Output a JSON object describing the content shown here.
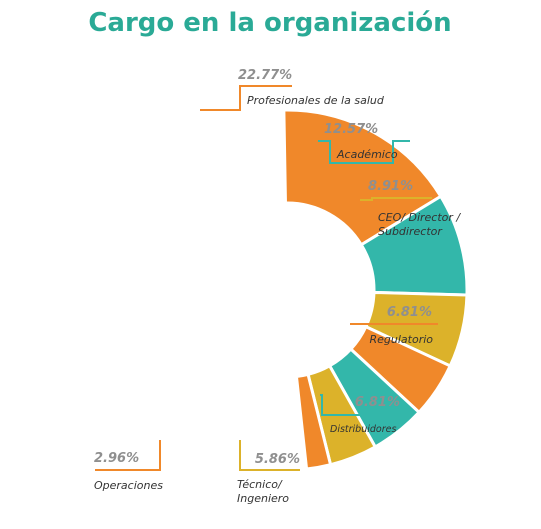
{
  "colors": {
    "orange": "#f0882a",
    "teal": "#33b7aa",
    "gold": "#dcb22a",
    "title": "#2aaa96",
    "percent": "#8f8f8f",
    "label": "#333333",
    "separator": "#ffffff"
  },
  "chart_data": {
    "type": "pie",
    "variant": "partial-donut",
    "title": "Cargo en la organización",
    "series": [
      {
        "values": [
          22.77,
          12.57,
          8.91,
          6.81,
          6.81,
          5.86,
          2.96
        ],
        "categories": [
          "Profesionales de la salud",
          "Académico",
          "CEO/ Director / Subdirector",
          "Regulatorio",
          "Distribuidores",
          "Técnico/ Ingeniero",
          "Operaciones"
        ]
      }
    ],
    "slices": [
      {
        "category": "Profesionales de la salud",
        "percent_label": "22.77%",
        "label_lines": [
          "Profesionales de la salud"
        ],
        "color": "orange"
      },
      {
        "category": "Académico",
        "percent_label": "12.57%",
        "label_lines": [
          "Académico"
        ],
        "color": "teal"
      },
      {
        "category": "CEO/ Director / Subdirector",
        "percent_label": "8.91%",
        "label_lines": [
          "CEO/ Director /",
          "Subdirector"
        ],
        "color": "gold"
      },
      {
        "category": "Regulatorio",
        "percent_label": "6.81%",
        "label_lines": [
          "Regulatorio"
        ],
        "color": "orange"
      },
      {
        "category": "Distribuidores",
        "percent_label": "6.81%",
        "label_lines": [
          "Distribuidores"
        ],
        "color": "teal"
      },
      {
        "category": "Técnico/ Ingeniero",
        "percent_label": "5.86%",
        "label_lines": [
          "Técnico/",
          "Ingeniero"
        ],
        "color": "gold"
      },
      {
        "category": "Operaciones",
        "percent_label": "2.96%",
        "label_lines": [
          "Operaciones"
        ],
        "color": "orange"
      }
    ]
  }
}
